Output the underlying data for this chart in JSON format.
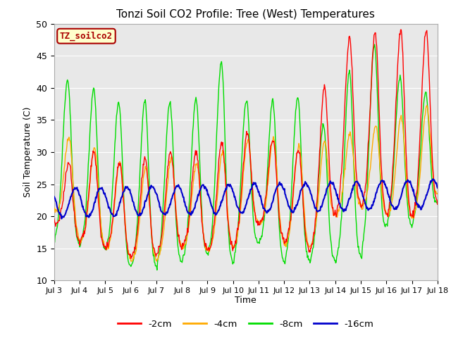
{
  "title": "Tonzi Soil CO2 Profile: Tree (West) Temperatures",
  "xlabel": "Time",
  "ylabel": "Soil Temperature (C)",
  "ylim": [
    10,
    50
  ],
  "xlim_days": [
    0,
    15
  ],
  "xtick_labels": [
    "Jul 3",
    "Jul 4",
    "Jul 5",
    "Jul 6",
    "Jul 7",
    "Jul 8",
    "Jul 9",
    "Jul 10",
    "Jul 11",
    "Jul 12",
    "Jul 13",
    "Jul 14",
    "Jul 15",
    "Jul 16",
    "Jul 17",
    "Jul 18"
  ],
  "xtick_positions": [
    0,
    1,
    2,
    3,
    4,
    5,
    6,
    7,
    8,
    9,
    10,
    11,
    12,
    13,
    14,
    15
  ],
  "label_text": "TZ_soilco2",
  "label_bg": "#ffffcc",
  "label_fg": "#aa0000",
  "colors": {
    "neg2cm": "#ff0000",
    "neg4cm": "#ffaa00",
    "neg8cm": "#00dd00",
    "neg16cm": "#0000cc"
  },
  "legend_labels": [
    "-2cm",
    "-4cm",
    "-8cm",
    "-16cm"
  ],
  "bg_color": "#e8e8e8",
  "grid_color": "#ffffff"
}
